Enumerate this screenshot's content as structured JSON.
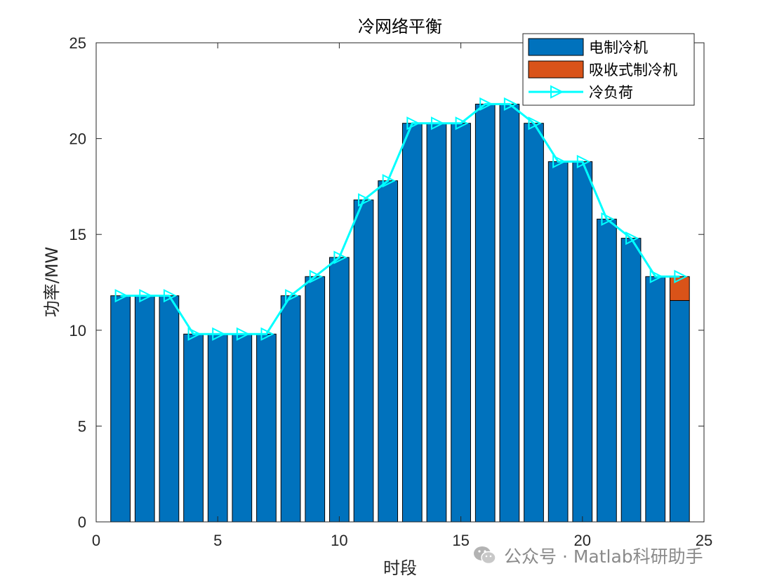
{
  "chart_data": {
    "type": "bar",
    "title": "冷网络平衡",
    "xlabel": "时段",
    "ylabel": "功率/MW",
    "xlim": [
      0,
      25
    ],
    "ylim": [
      0,
      25
    ],
    "xticks": [
      0,
      5,
      10,
      15,
      20,
      25
    ],
    "yticks": [
      0,
      5,
      10,
      15,
      20,
      25
    ],
    "grid": false,
    "legend_position": "top-right",
    "stacked": true,
    "x": [
      1,
      2,
      3,
      4,
      5,
      6,
      7,
      8,
      9,
      10,
      11,
      12,
      13,
      14,
      15,
      16,
      17,
      18,
      19,
      20,
      21,
      22,
      23,
      24
    ],
    "series": [
      {
        "name": "电制冷机",
        "kind": "bar",
        "color": "#0072BD",
        "values": [
          11.8,
          11.8,
          11.8,
          9.8,
          9.8,
          9.8,
          9.8,
          11.8,
          12.8,
          13.8,
          16.8,
          17.8,
          20.8,
          20.8,
          20.8,
          21.8,
          21.8,
          20.8,
          18.8,
          18.8,
          15.8,
          14.8,
          12.8,
          11.55
        ]
      },
      {
        "name": "吸收式制冷机",
        "kind": "bar",
        "color": "#D95319",
        "values": [
          0,
          0,
          0,
          0,
          0,
          0,
          0,
          0,
          0,
          0,
          0,
          0,
          0,
          0,
          0,
          0,
          0,
          0,
          0,
          0,
          0,
          0,
          0,
          1.25
        ]
      },
      {
        "name": "冷负荷",
        "kind": "line",
        "color": "#00FFFF",
        "marker": "triangle-right",
        "values": [
          11.8,
          11.8,
          11.8,
          9.8,
          9.8,
          9.8,
          9.8,
          11.8,
          12.8,
          13.8,
          16.8,
          17.8,
          20.8,
          20.8,
          20.8,
          21.8,
          21.8,
          20.8,
          18.8,
          18.8,
          15.8,
          14.8,
          12.8,
          12.8
        ]
      }
    ]
  },
  "watermark": {
    "text": "公众号 · Matlab科研助手",
    "icon": "wechat-icon"
  }
}
